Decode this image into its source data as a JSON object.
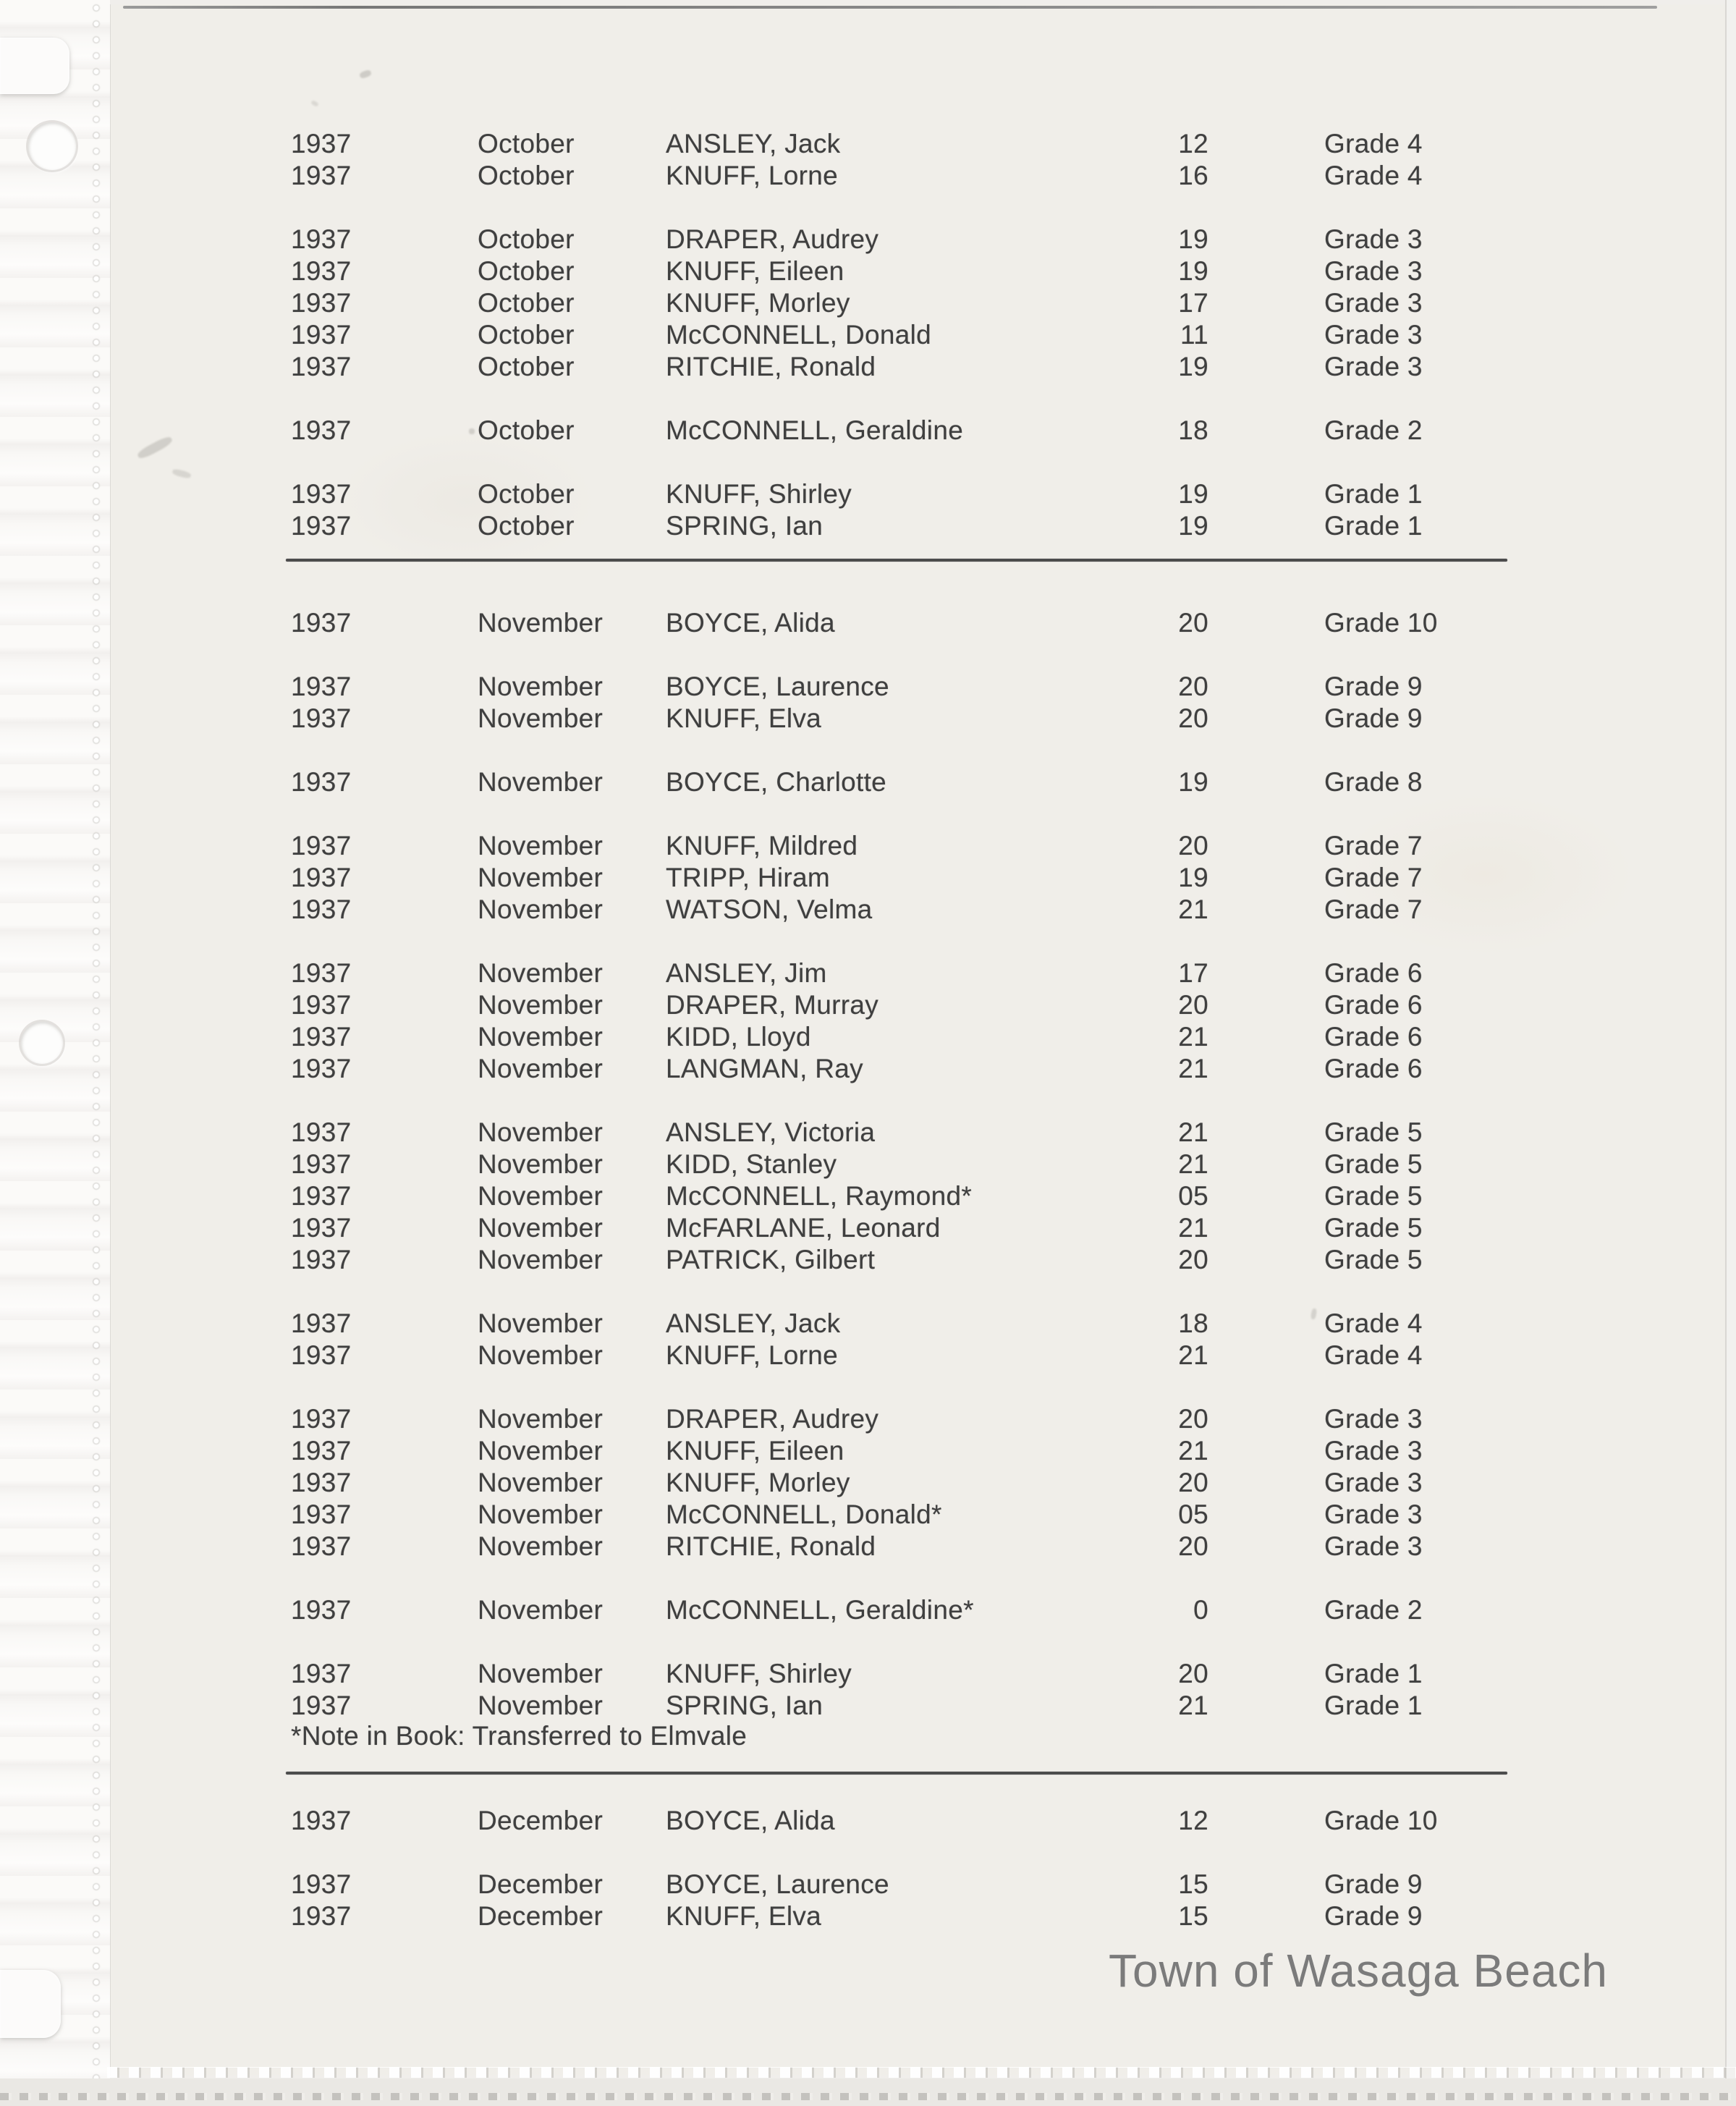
{
  "page": {
    "watermark": "Town of Wasaga Beach",
    "footnote": "*Note in Book: Transferred to Elmvale",
    "colors": {
      "text": "#3f3f3f",
      "watermark": "#7b7b7b",
      "paper": "#f0eee9"
    },
    "columns": [
      "year",
      "month",
      "name",
      "days",
      "grade"
    ],
    "sections": [
      {
        "month": "October",
        "groups": [
          [
            {
              "year": "1937",
              "month": "October",
              "name": "ANSLEY, Jack",
              "days": "12",
              "grade": "Grade 4"
            },
            {
              "year": "1937",
              "month": "October",
              "name": "KNUFF, Lorne",
              "days": "16",
              "grade": "Grade 4"
            }
          ],
          [
            {
              "year": "1937",
              "month": "October",
              "name": "DRAPER, Audrey",
              "days": "19",
              "grade": "Grade 3"
            },
            {
              "year": "1937",
              "month": "October",
              "name": "KNUFF, Eileen",
              "days": "19",
              "grade": "Grade 3"
            },
            {
              "year": "1937",
              "month": "October",
              "name": "KNUFF, Morley",
              "days": "17",
              "grade": "Grade 3"
            },
            {
              "year": "1937",
              "month": "October",
              "name": "McCONNELL, Donald",
              "days": "11",
              "grade": "Grade 3"
            },
            {
              "year": "1937",
              "month": "October",
              "name": "RITCHIE, Ronald",
              "days": "19",
              "grade": "Grade 3"
            }
          ],
          [
            {
              "year": "1937",
              "month": "October",
              "name": "McCONNELL, Geraldine",
              "days": "18",
              "grade": "Grade 2"
            }
          ],
          [
            {
              "year": "1937",
              "month": "October",
              "name": "KNUFF, Shirley",
              "days": "19",
              "grade": "Grade 1"
            },
            {
              "year": "1937",
              "month": "October",
              "name": "SPRING, Ian",
              "days": "19",
              "grade": "Grade 1"
            }
          ]
        ]
      },
      {
        "month": "November",
        "groups": [
          [
            {
              "year": "1937",
              "month": "November",
              "name": "BOYCE, Alida",
              "days": "20",
              "grade": "Grade 10"
            }
          ],
          [
            {
              "year": "1937",
              "month": "November",
              "name": "BOYCE, Laurence",
              "days": "20",
              "grade": "Grade 9"
            },
            {
              "year": "1937",
              "month": "November",
              "name": "KNUFF, Elva",
              "days": "20",
              "grade": "Grade 9"
            }
          ],
          [
            {
              "year": "1937",
              "month": "November",
              "name": "BOYCE, Charlotte",
              "days": "19",
              "grade": "Grade 8"
            }
          ],
          [
            {
              "year": "1937",
              "month": "November",
              "name": "KNUFF, Mildred",
              "days": "20",
              "grade": "Grade 7"
            },
            {
              "year": "1937",
              "month": "November",
              "name": "TRIPP, Hiram",
              "days": "19",
              "grade": "Grade 7"
            },
            {
              "year": "1937",
              "month": "November",
              "name": "WATSON, Velma",
              "days": "21",
              "grade": "Grade 7"
            }
          ],
          [
            {
              "year": "1937",
              "month": "November",
              "name": "ANSLEY, Jim",
              "days": "17",
              "grade": "Grade 6"
            },
            {
              "year": "1937",
              "month": "November",
              "name": "DRAPER, Murray",
              "days": "20",
              "grade": "Grade 6"
            },
            {
              "year": "1937",
              "month": "November",
              "name": "KIDD, Lloyd",
              "days": "21",
              "grade": "Grade 6"
            },
            {
              "year": "1937",
              "month": "November",
              "name": "LANGMAN, Ray",
              "days": "21",
              "grade": "Grade 6"
            }
          ],
          [
            {
              "year": "1937",
              "month": "November",
              "name": "ANSLEY, Victoria",
              "days": "21",
              "grade": "Grade 5"
            },
            {
              "year": "1937",
              "month": "November",
              "name": "KIDD, Stanley",
              "days": "21",
              "grade": "Grade 5"
            },
            {
              "year": "1937",
              "month": "November",
              "name": "McCONNELL, Raymond*",
              "days": "05",
              "grade": "Grade 5"
            },
            {
              "year": "1937",
              "month": "November",
              "name": "McFARLANE, Leonard",
              "days": "21",
              "grade": "Grade 5"
            },
            {
              "year": "1937",
              "month": "November",
              "name": "PATRICK, Gilbert",
              "days": "20",
              "grade": "Grade 5"
            }
          ],
          [
            {
              "year": "1937",
              "month": "November",
              "name": "ANSLEY, Jack",
              "days": "18",
              "grade": "Grade 4"
            },
            {
              "year": "1937",
              "month": "November",
              "name": "KNUFF, Lorne",
              "days": "21",
              "grade": "Grade 4"
            }
          ],
          [
            {
              "year": "1937",
              "month": "November",
              "name": "DRAPER, Audrey",
              "days": "20",
              "grade": "Grade 3"
            },
            {
              "year": "1937",
              "month": "November",
              "name": "KNUFF, Eileen",
              "days": "21",
              "grade": "Grade 3"
            },
            {
              "year": "1937",
              "month": "November",
              "name": "KNUFF, Morley",
              "days": "20",
              "grade": "Grade 3"
            },
            {
              "year": "1937",
              "month": "November",
              "name": "McCONNELL, Donald*",
              "days": "05",
              "grade": "Grade 3"
            },
            {
              "year": "1937",
              "month": "November",
              "name": "RITCHIE, Ronald",
              "days": "20",
              "grade": "Grade 3"
            }
          ],
          [
            {
              "year": "1937",
              "month": "November",
              "name": "McCONNELL, Geraldine*",
              "days": "0",
              "grade": "Grade 2"
            }
          ],
          [
            {
              "year": "1937",
              "month": "November",
              "name": "KNUFF, Shirley",
              "days": "20",
              "grade": "Grade 1"
            },
            {
              "year": "1937",
              "month": "November",
              "name": "SPRING, Ian",
              "days": "21",
              "grade": "Grade 1"
            }
          ]
        ]
      },
      {
        "month": "December",
        "groups": [
          [
            {
              "year": "1937",
              "month": "December",
              "name": "BOYCE, Alida",
              "days": "12",
              "grade": "Grade 10"
            }
          ],
          [
            {
              "year": "1937",
              "month": "December",
              "name": "BOYCE, Laurence",
              "days": "15",
              "grade": "Grade 9"
            },
            {
              "year": "1937",
              "month": "December",
              "name": "KNUFF, Elva",
              "days": "15",
              "grade": "Grade 9"
            }
          ]
        ]
      }
    ]
  }
}
